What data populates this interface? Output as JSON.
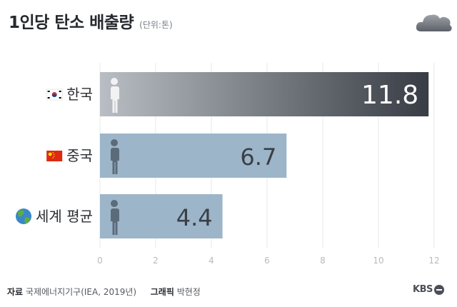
{
  "header": {
    "title": "1인당 탄소 배출량",
    "unit": "(단위:톤)"
  },
  "chart_data": {
    "type": "bar",
    "orientation": "horizontal",
    "categories": [
      "한국",
      "중국",
      "세계 평균"
    ],
    "values": [
      11.8,
      6.7,
      4.4
    ],
    "data_labels": [
      "11.8",
      "6.7",
      "4.4"
    ],
    "title": "1인당 탄소 배출량",
    "unit": "(단위:톤)",
    "xlim": [
      0,
      12
    ],
    "xticks": [
      0,
      2,
      4,
      6,
      8,
      10,
      12
    ],
    "grid": true,
    "colors": {
      "highlight_start": "#b9bec4",
      "highlight_end": "#383c44",
      "bar": "#9db5c9",
      "person_light": "#f2f2f2",
      "person_dark": "#5b6b7a"
    },
    "category_icons": [
      "korea-flag-icon",
      "china-flag-icon",
      "globe-icon"
    ]
  },
  "footer": {
    "source_label": "자료",
    "source": "국제에너지기구(IEA, 2019년)",
    "graphic_label": "그래픽",
    "graphic": "박현정",
    "logo": "KBS"
  }
}
